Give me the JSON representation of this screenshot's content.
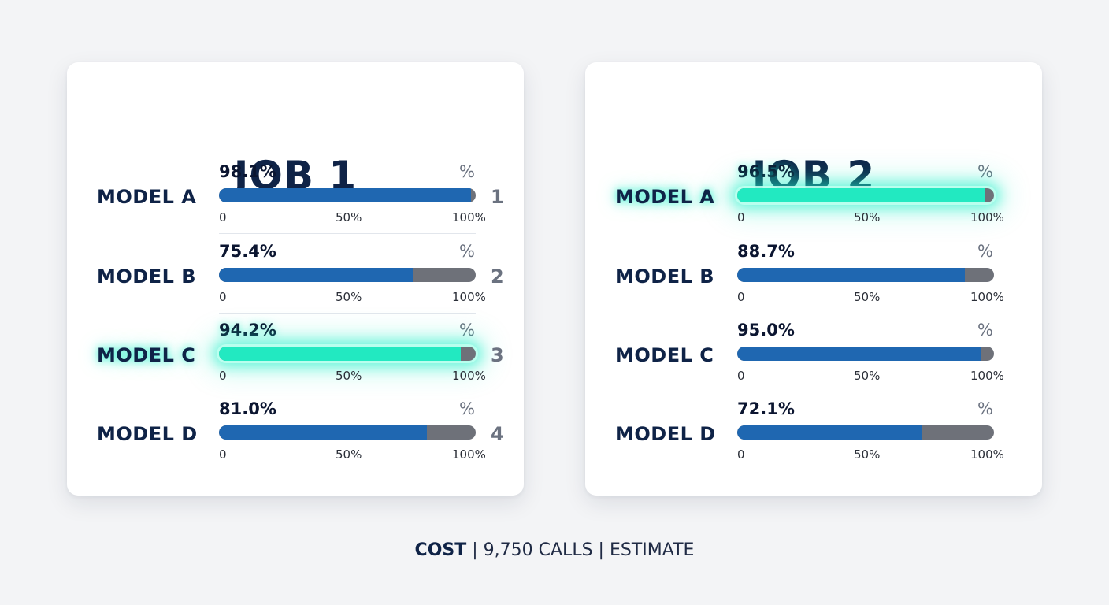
{
  "colors": {
    "background": "#f3f4f6",
    "card": "#ffffff",
    "title": "#0f2347",
    "bar_fill": "#1f67b1",
    "bar_track": "#6e7179",
    "highlight": "#22e9c1"
  },
  "chart_data": [
    {
      "type": "bar",
      "title": "JOB 1",
      "categories": [
        "MODEL A",
        "MODEL B",
        "MODEL C",
        "MODEL D"
      ],
      "values": [
        98.1,
        75.4,
        94.2,
        81.0
      ],
      "value_labels": [
        "98.1%",
        "75.4%",
        "94.2%",
        "81.0%"
      ],
      "unit_label": "%",
      "ranks": [
        "1",
        "2",
        "3",
        "4"
      ],
      "ticks": [
        "0",
        "50%",
        "100%"
      ],
      "xlim": [
        0,
        100
      ],
      "highlighted": "MODEL C"
    },
    {
      "type": "bar",
      "title": "JOB 2",
      "categories": [
        "MODEL A",
        "MODEL B",
        "MODEL C",
        "MODEL D"
      ],
      "values": [
        96.5,
        88.7,
        95.0,
        72.1
      ],
      "value_labels": [
        "96.5%",
        "88.7%",
        "95.0%",
        "72.1%"
      ],
      "unit_label": "%",
      "ranks": [],
      "ticks": [
        "0",
        "50%",
        "100%"
      ],
      "xlim": [
        0,
        100
      ],
      "highlighted": "MODEL A"
    }
  ],
  "footer": {
    "cost_label": "COST",
    "separator": "|",
    "calls": "9,750 CALLS",
    "estimate": "ESTIMATE"
  }
}
